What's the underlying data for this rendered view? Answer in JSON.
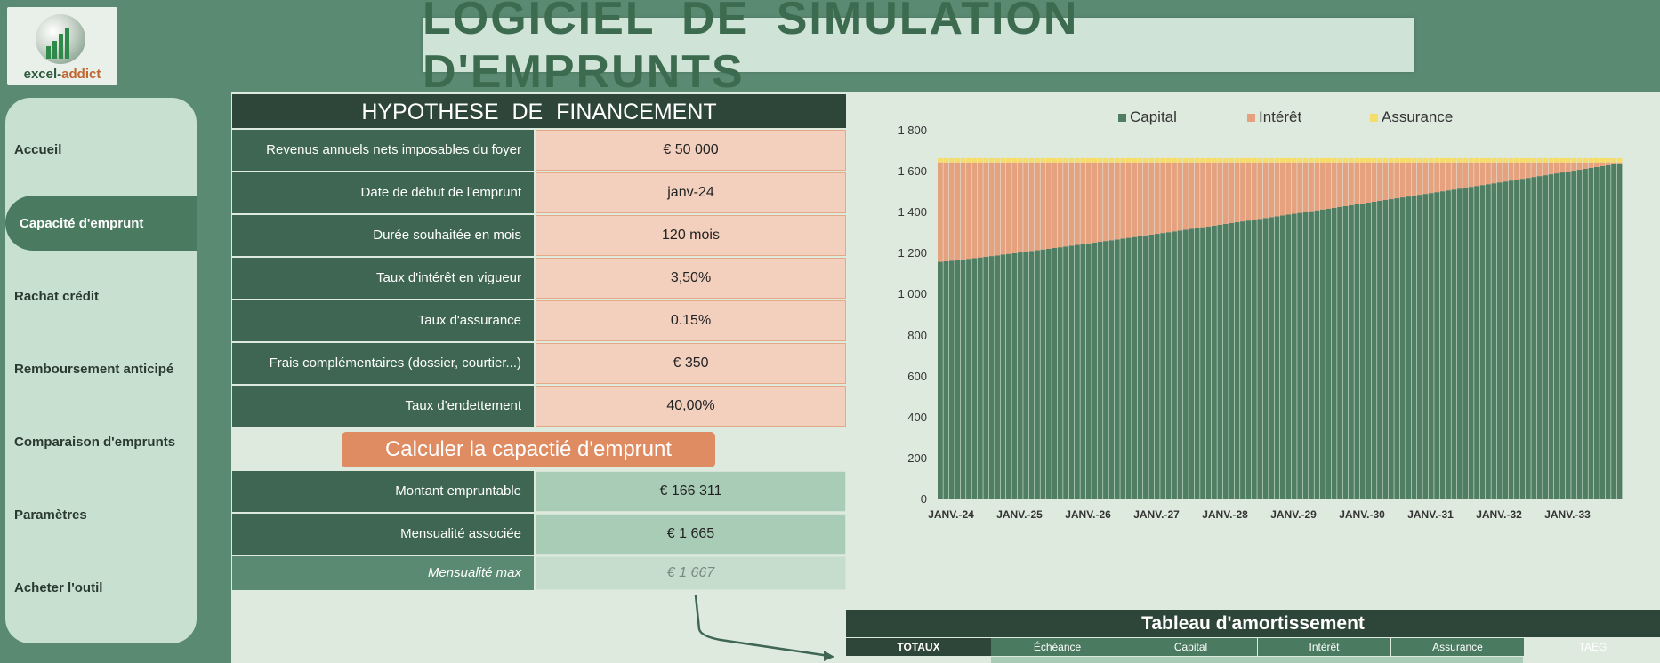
{
  "app": {
    "logo_text_1": "excel-",
    "logo_text_2": "addict",
    "title": "LOGICIEL  DE  SIMULATION D'EMPRUNTS"
  },
  "sidebar": {
    "items": [
      {
        "label": "Accueil",
        "active": false
      },
      {
        "label": "Capacité d'emprunt",
        "active": true
      },
      {
        "label": "Rachat crédit",
        "active": false
      },
      {
        "label": "Remboursement anticipé",
        "active": false
      },
      {
        "label": "Comparaison d'emprunts",
        "active": false
      },
      {
        "label": "Paramètres",
        "active": false
      },
      {
        "label": "Acheter l'outil",
        "active": false
      }
    ]
  },
  "financing": {
    "header": "HYPOTHESE  DE  FINANCEMENT",
    "rows": [
      {
        "label": "Revenus annuels nets imposables du foyer",
        "value": "€ 50 000"
      },
      {
        "label": "Date de début de l'emprunt",
        "value": "janv-24"
      },
      {
        "label": "Durée souhaitée en mois",
        "value": "120 mois"
      },
      {
        "label": "Taux d'intérêt en vigueur",
        "value": "3,50%"
      },
      {
        "label": "Taux d'assurance",
        "value": "0.15%"
      },
      {
        "label": "Frais complémentaires (dossier, courtier...)",
        "value": "€ 350"
      },
      {
        "label": "Taux d'endettement",
        "value": "40,00%"
      }
    ],
    "button": "Calculer la capactié d'emprunt",
    "results": [
      {
        "label": "Montant empruntable",
        "value": "€ 166 311"
      },
      {
        "label": "Mensualité associée",
        "value": "€ 1 665"
      },
      {
        "label": "Mensualité max",
        "value": "€ 1 667"
      }
    ]
  },
  "amortization": {
    "title": "Tableau d'amortissement",
    "totals_label": "TOTAUX",
    "columns": [
      "Échéance",
      "Capital",
      "Intérêt",
      "Assurance"
    ],
    "extra_col": "TAEG"
  },
  "colors": {
    "capital": "#4f7e63",
    "interet": "#e6a17f",
    "assurance": "#f5dc6b"
  },
  "chart_data": {
    "type": "bar",
    "stacked": true,
    "series": [
      {
        "name": "Capital",
        "start": 1160,
        "end": 1640
      },
      {
        "name": "Intérêt",
        "start": 485,
        "end": 5
      },
      {
        "name": "Assurance",
        "constant": 21
      }
    ],
    "periods": 120,
    "ylim": [
      0,
      1800
    ],
    "yticks": [
      "1 800",
      "1 600",
      "1 400",
      "1 200",
      "1 000",
      "800",
      "600",
      "400",
      "200",
      "0"
    ],
    "xticks": [
      "JANV.-24",
      "JANV.-25",
      "JANV.-26",
      "JANV.-27",
      "JANV.-28",
      "JANV.-29",
      "JANV.-30",
      "JANV.-31",
      "JANV.-32",
      "JANV.-33"
    ],
    "legend": "top"
  }
}
